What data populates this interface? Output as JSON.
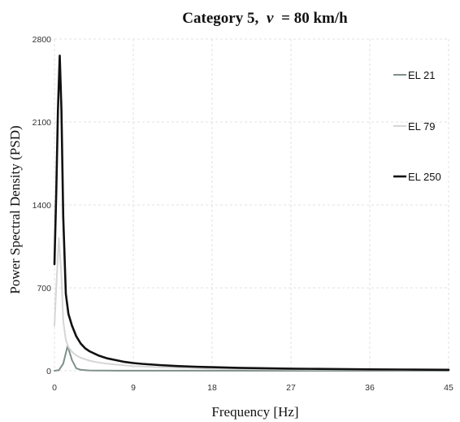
{
  "chart_data": {
    "type": "line",
    "title_prefix": "Category 5,",
    "title_var": "v",
    "title_suffix": "= 80 km/h",
    "xlabel": "Frequency [Hz]",
    "ylabel": "Power Spectral Density (PSD)",
    "xlim": [
      0,
      45
    ],
    "ylim": [
      0,
      2800
    ],
    "xticks": [
      0,
      9,
      18,
      27,
      36,
      45
    ],
    "yticks": [
      0,
      700,
      1400,
      2100,
      2800
    ],
    "grid": true,
    "legend_placement": "top-right",
    "series": [
      {
        "name": "EL 21",
        "color": "#7f8f8a",
        "x": [
          0,
          0.5,
          1.0,
          1.5,
          2.0,
          2.5,
          3.0,
          3.5,
          4.0,
          5.0,
          6.0,
          7.0,
          8.0,
          9.0,
          12.0,
          18.0,
          27.0,
          36.0,
          45.0
        ],
        "y": [
          0,
          5,
          60,
          210,
          90,
          20,
          8,
          5,
          3,
          2,
          2,
          1,
          1,
          1,
          1,
          1,
          0,
          0,
          0
        ]
      },
      {
        "name": "EL 79",
        "color": "#d6d6d6",
        "x": [
          0,
          0.2,
          0.5,
          0.8,
          1.0,
          1.3,
          1.6,
          2.0,
          2.5,
          3.0,
          4.0,
          5.0,
          6.0,
          7.0,
          9.0,
          12.0,
          15.0,
          18.0,
          22.0,
          27.0,
          36.0,
          45.0
        ],
        "y": [
          380,
          700,
          1120,
          800,
          420,
          260,
          200,
          160,
          130,
          110,
          85,
          70,
          60,
          52,
          40,
          30,
          24,
          18,
          14,
          10,
          6,
          4
        ]
      },
      {
        "name": "EL 250",
        "color": "#111111",
        "x": [
          0,
          0.2,
          0.4,
          0.6,
          0.8,
          1.0,
          1.3,
          1.6,
          2.0,
          2.5,
          3.0,
          3.5,
          4.0,
          5.0,
          6.0,
          7.0,
          8.0,
          9.0,
          10.0,
          12.0,
          14.0,
          16.0,
          18.0,
          21.0,
          24.0,
          27.0,
          30.0,
          36.0,
          40.0,
          45.0
        ],
        "y": [
          900,
          1500,
          2200,
          2660,
          2200,
          1300,
          650,
          480,
          380,
          290,
          230,
          190,
          165,
          130,
          105,
          90,
          75,
          65,
          58,
          48,
          40,
          34,
          30,
          25,
          21,
          18,
          16,
          12,
          10,
          8
        ]
      }
    ]
  }
}
